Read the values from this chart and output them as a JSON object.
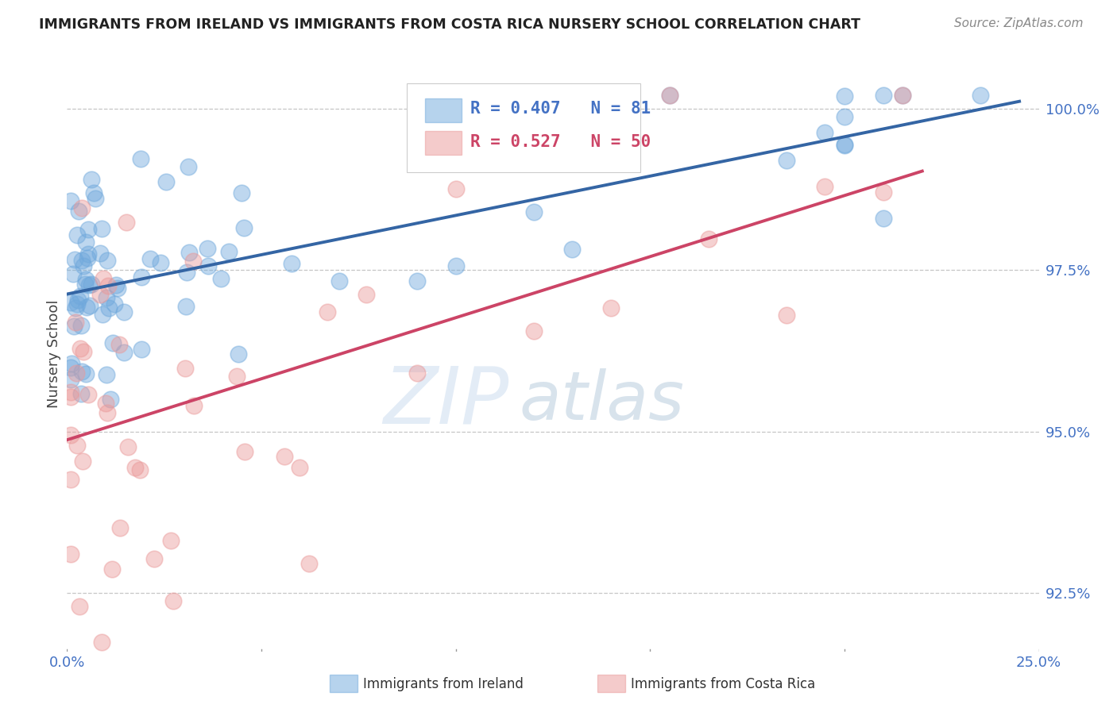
{
  "title": "IMMIGRANTS FROM IRELAND VS IMMIGRANTS FROM COSTA RICA NURSERY SCHOOL CORRELATION CHART",
  "source": "Source: ZipAtlas.com",
  "ylabel": "Nursery School",
  "xlim": [
    0.0,
    0.25
  ],
  "ylim": [
    0.916,
    1.008
  ],
  "yticks": [
    0.925,
    0.95,
    0.975,
    1.0
  ],
  "ytick_labels": [
    "92.5%",
    "95.0%",
    "97.5%",
    "100.0%"
  ],
  "xticks": [
    0.0,
    0.05,
    0.1,
    0.15,
    0.2,
    0.25
  ],
  "xtick_labels": [
    "0.0%",
    "",
    "",
    "",
    "",
    "25.0%"
  ],
  "ireland_R": 0.407,
  "ireland_N": 81,
  "costarica_R": 0.527,
  "costarica_N": 50,
  "ireland_color": "#6fa8dc",
  "costarica_color": "#ea9999",
  "trendline_ireland_color": "#3465a4",
  "trendline_costarica_color": "#cc4466",
  "legend_ireland": "Immigrants from Ireland",
  "legend_costarica": "Immigrants from Costa Rica",
  "watermark_zip": "ZIP",
  "watermark_atlas": "atlas",
  "watermark_color_zip": "#c8ddf0",
  "watermark_color_atlas": "#b8cce4"
}
